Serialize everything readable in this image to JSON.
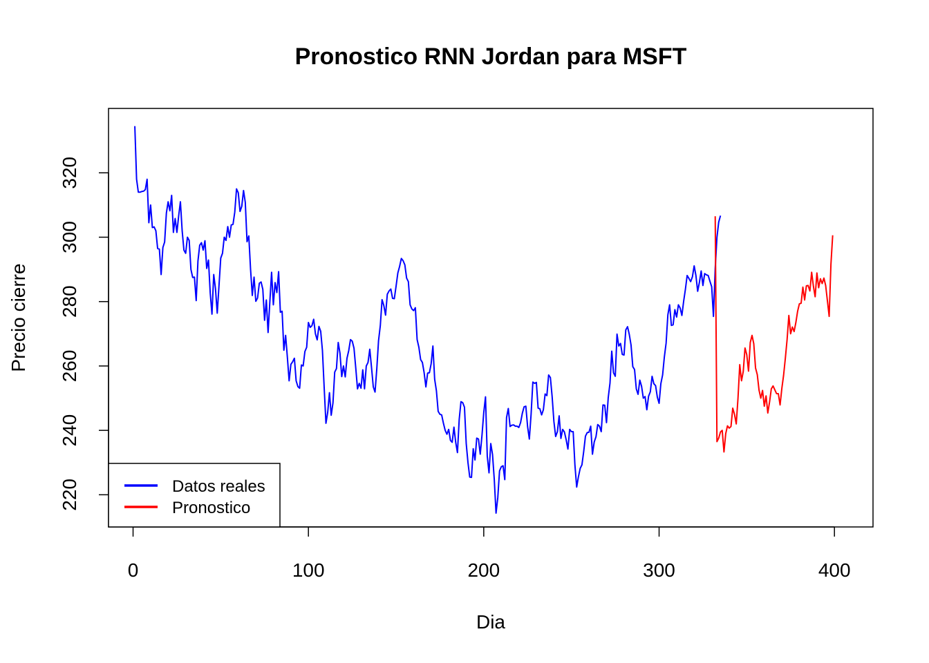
{
  "chart_data": {
    "type": "line",
    "title": "Pronostico RNN Jordan para  MSFT",
    "xlabel": "Dia",
    "ylabel": "Precio cierre",
    "xlim": [
      -14,
      422
    ],
    "ylim": [
      210,
      340
    ],
    "x_ticks": [
      0,
      100,
      200,
      300,
      400
    ],
    "y_ticks": [
      220,
      240,
      260,
      280,
      300,
      320
    ],
    "grid": false,
    "legend_position": "bottom-left",
    "series": [
      {
        "name": "Datos reales",
        "color": "#0000FF",
        "start_x": 1,
        "values": [
          334.5,
          318.0,
          314.0,
          314.0,
          314.2,
          314.3,
          314.8,
          318.0,
          304.5,
          310.0,
          303.0,
          303.2,
          302.0,
          296.5,
          296.3,
          288.4,
          296.8,
          298.5,
          307.5,
          311.0,
          308.2,
          313.0,
          301.5,
          305.8,
          301.5,
          306.6,
          311.0,
          302.0,
          296.0,
          295.0,
          300.0,
          299.0,
          290.0,
          287.5,
          287.6,
          280.3,
          292.6,
          297.5,
          298.3,
          296.0,
          298.9,
          290.3,
          292.9,
          282.7,
          276.1,
          288.4,
          284.0,
          276.4,
          284.9,
          293.5,
          295.0,
          300.0,
          299.0,
          303.3,
          300.0,
          303.8,
          304.0,
          307.8,
          315.0,
          313.8,
          308.0,
          309.6,
          314.5,
          310.8,
          298.6,
          300.4,
          290.1,
          281.9,
          287.6,
          280.1,
          281.1,
          285.7,
          286.1,
          283.8,
          274.2,
          280.5,
          270.4,
          279.9,
          289.1,
          279.0,
          285.9,
          282.8,
          289.3,
          276.7,
          277.0,
          264.9,
          269.5,
          262.7,
          255.4,
          260.5,
          261.3,
          262.4,
          255.4,
          253.6,
          253.1,
          260.3,
          260.0,
          264.5,
          265.8,
          273.5,
          272.0,
          272.5,
          274.5,
          270.0,
          268.1,
          272.3,
          270.8,
          264.8,
          253.2,
          242.2,
          245.6,
          251.7,
          244.7,
          248.5,
          258.1,
          259.2,
          267.3,
          264.0,
          256.7,
          260.0,
          256.6,
          262.4,
          264.8,
          268.2,
          267.7,
          265.5,
          259.4,
          252.9,
          254.6,
          253.1,
          258.8,
          252.9,
          260.0,
          261.1,
          265.2,
          259.5,
          253.5,
          251.9,
          259.1,
          267.9,
          272.5,
          280.6,
          278.8,
          275.8,
          282.3,
          283.3,
          283.9,
          281.0,
          280.9,
          284.8,
          288.9,
          290.9,
          293.4,
          292.7,
          291.4,
          287.3,
          286.2,
          279.0,
          277.7,
          277.2,
          278.1,
          268.2,
          265.8,
          262.0,
          261.1,
          257.9,
          253.5,
          257.8,
          257.9,
          260.7,
          266.2,
          255.9,
          252.3,
          245.9,
          245.0,
          244.8,
          242.2,
          240.0,
          238.8,
          240.3,
          236.9,
          236.3,
          241.0,
          236.3,
          233.1,
          243.4,
          248.9,
          248.6,
          247.2,
          235.9,
          230.0,
          225.5,
          225.4,
          234.3,
          230.8,
          237.6,
          237.3,
          232.6,
          238.5,
          245.5,
          250.4,
          232.0,
          226.8,
          235.9,
          232.5,
          224.8,
          214.3,
          219.1,
          227.4,
          228.7,
          229.0,
          224.7,
          244.0,
          246.8,
          241.2,
          241.6,
          241.7,
          241.3,
          241.3,
          240.9,
          242.4,
          245.3,
          247.3,
          247.5,
          241.2,
          237.3,
          245.0,
          255.0,
          254.6,
          254.9,
          246.9,
          246.7,
          244.8,
          246.4,
          251.3,
          250.8,
          257.2,
          256.4,
          250.5,
          242.8,
          238.1,
          239.6,
          244.5,
          237.5,
          240.3,
          239.5,
          237.1,
          234.2,
          240.3,
          239.6,
          239.6,
          229.2,
          222.4,
          225.6,
          228.2,
          229.3,
          233.4,
          238.2,
          239.3,
          239.4,
          241.3,
          232.6,
          236.4,
          238.0,
          241.8,
          241.3,
          239.6,
          247.9,
          247.8,
          242.4,
          250.2,
          254.7,
          264.6,
          257.9,
          256.8,
          269.9,
          266.2,
          267.0,
          263.6,
          263.4,
          271.2,
          272.2,
          269.8,
          266.5,
          259.8,
          258.9,
          252.9,
          251.2,
          255.6,
          253.7,
          250.0,
          250.5,
          246.4,
          250.6,
          252.0,
          256.8,
          254.5,
          253.9,
          250.3,
          248.4,
          254.5,
          257.2,
          262.8,
          267.1,
          275.9,
          279.0,
          272.6,
          272.8,
          277.5,
          275.2,
          279.0,
          278.0,
          275.7,
          280.1,
          283.8,
          288.1,
          287.2,
          286.2,
          287.7,
          291.1,
          288.1,
          283.2,
          286.0,
          289.5,
          285.0,
          288.7,
          288.3,
          288.1,
          286.3,
          284.6,
          275.4,
          290.3,
          300.0,
          304.7,
          306.7
        ]
      },
      {
        "name": "Pronostico",
        "color": "#FF0000",
        "start_x": 332,
        "values": [
          306.5,
          236.5,
          237.6,
          239.5,
          240.0,
          233.3,
          239.0,
          241.4,
          240.7,
          241.2,
          246.9,
          245.0,
          242.0,
          250.0,
          260.4,
          255.4,
          258.3,
          265.6,
          263.5,
          258.4,
          267.3,
          269.5,
          266.9,
          259.4,
          257.3,
          252.5,
          250.0,
          252.4,
          247.5,
          250.7,
          245.4,
          248.8,
          252.9,
          253.8,
          252.6,
          251.4,
          251.4,
          247.9,
          253.0,
          257.1,
          262.4,
          268.2,
          275.7,
          270.0,
          272.1,
          270.7,
          273.5,
          277.0,
          279.3,
          279.5,
          284.5,
          280.5,
          284.9,
          285.0,
          283.3,
          289.1,
          284.8,
          281.5,
          288.9,
          284.3,
          287.1,
          285.6,
          287.3,
          285.0,
          280.2,
          275.4,
          291.6,
          300.6
        ]
      }
    ]
  }
}
